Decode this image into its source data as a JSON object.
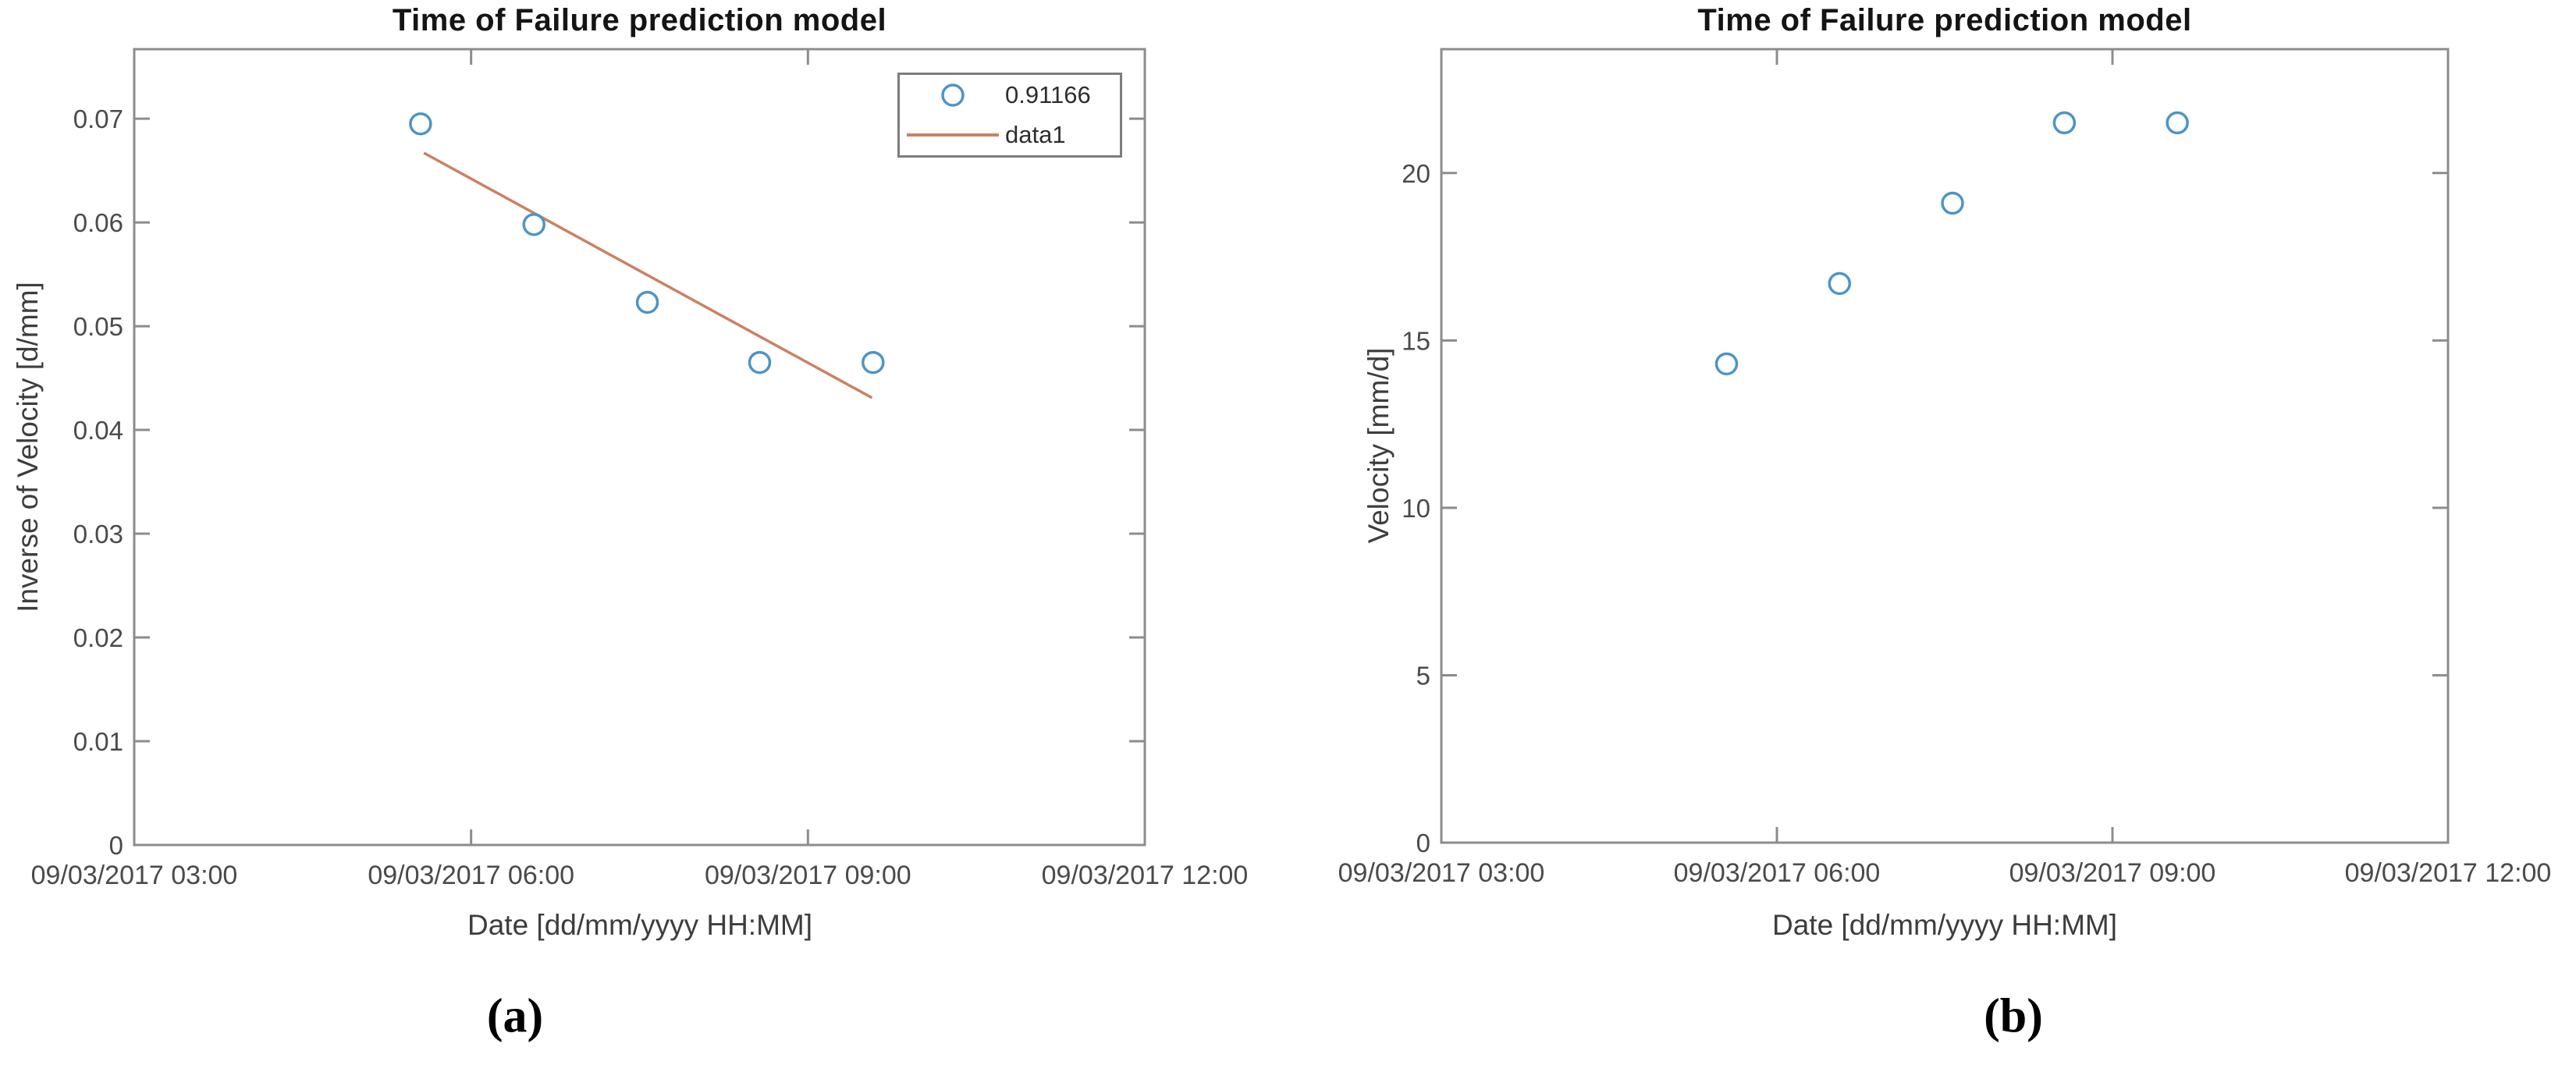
{
  "style": {
    "background": "#ffffff",
    "axis_color": "#8c8c8c",
    "tick_label_color": "#4a4a4a",
    "title_color": "#141414",
    "axis_label_color": "#3d3d3d",
    "legend_border_color": "#7d7d7d",
    "marker_color": "#4d94c8",
    "trend_line_color": "#cc8163"
  },
  "captions": {
    "a": "(a)",
    "b": "(b)"
  },
  "chart_data": [
    {
      "id": "a",
      "type": "scatter",
      "title": "Time of Failure prediction model",
      "xlabel": "Date [dd/mm/yyyy HH:MM]",
      "ylabel": "Inverse of Velocity [d/mm]",
      "x_axis_note": "hours of day 09/03/2017",
      "xlim": [
        3,
        12
      ],
      "ylim": [
        0,
        0.0767
      ],
      "grid": false,
      "x_ticks": [
        {
          "value": 3,
          "label": "09/03/2017 03:00"
        },
        {
          "value": 6,
          "label": "09/03/2017 06:00"
        },
        {
          "value": 9,
          "label": "09/03/2017 09:00"
        },
        {
          "value": 12,
          "label": "09/03/2017 12:00"
        }
      ],
      "y_ticks": [
        {
          "value": 0,
          "label": "0"
        },
        {
          "value": 0.01,
          "label": "0.01"
        },
        {
          "value": 0.02,
          "label": "0.02"
        },
        {
          "value": 0.03,
          "label": "0.03"
        },
        {
          "value": 0.04,
          "label": "0.04"
        },
        {
          "value": 0.05,
          "label": "0.05"
        },
        {
          "value": 0.06,
          "label": "0.06"
        },
        {
          "value": 0.07,
          "label": "0.07"
        }
      ],
      "series": [
        {
          "name": "data1",
          "type": "line",
          "color": "#cc8163",
          "x_hours": [
            5.58,
            9.57
          ],
          "y": [
            0.0667,
            0.0431
          ]
        },
        {
          "name": "0.91166",
          "type": "scatter",
          "marker": "circle",
          "color": "#4d94c8",
          "x_hours": [
            5.55,
            6.56,
            7.57,
            8.57,
            9.58
          ],
          "y": [
            0.0695,
            0.0598,
            0.0523,
            0.0465,
            0.0465
          ]
        }
      ],
      "legend": {
        "position": "top-right",
        "items": [
          {
            "marker": "circle",
            "label": "0.91166"
          },
          {
            "marker": "line",
            "label": "data1"
          }
        ]
      }
    },
    {
      "id": "b",
      "type": "scatter",
      "title": "Time of Failure prediction model",
      "xlabel": "Date [dd/mm/yyyy HH:MM]",
      "ylabel": "Velocity [mm/d]",
      "x_axis_note": "hours of day 09/03/2017",
      "xlim": [
        3,
        12
      ],
      "ylim": [
        0,
        23.7
      ],
      "grid": false,
      "x_ticks": [
        {
          "value": 3,
          "label": "09/03/2017 03:00"
        },
        {
          "value": 6,
          "label": "09/03/2017 06:00"
        },
        {
          "value": 9,
          "label": "09/03/2017 09:00"
        },
        {
          "value": 12,
          "label": "09/03/2017 12:00"
        }
      ],
      "y_ticks": [
        {
          "value": 0,
          "label": "0"
        },
        {
          "value": 5,
          "label": "5"
        },
        {
          "value": 10,
          "label": "10"
        },
        {
          "value": 15,
          "label": "15"
        },
        {
          "value": 20,
          "label": "20"
        }
      ],
      "series": [
        {
          "name": "velocity",
          "type": "scatter",
          "marker": "circle",
          "color": "#4d94c8",
          "x_hours": [
            5.55,
            6.56,
            7.57,
            8.57,
            9.58
          ],
          "y": [
            14.3,
            16.7,
            19.1,
            21.5,
            21.5
          ]
        }
      ],
      "legend": null
    }
  ]
}
